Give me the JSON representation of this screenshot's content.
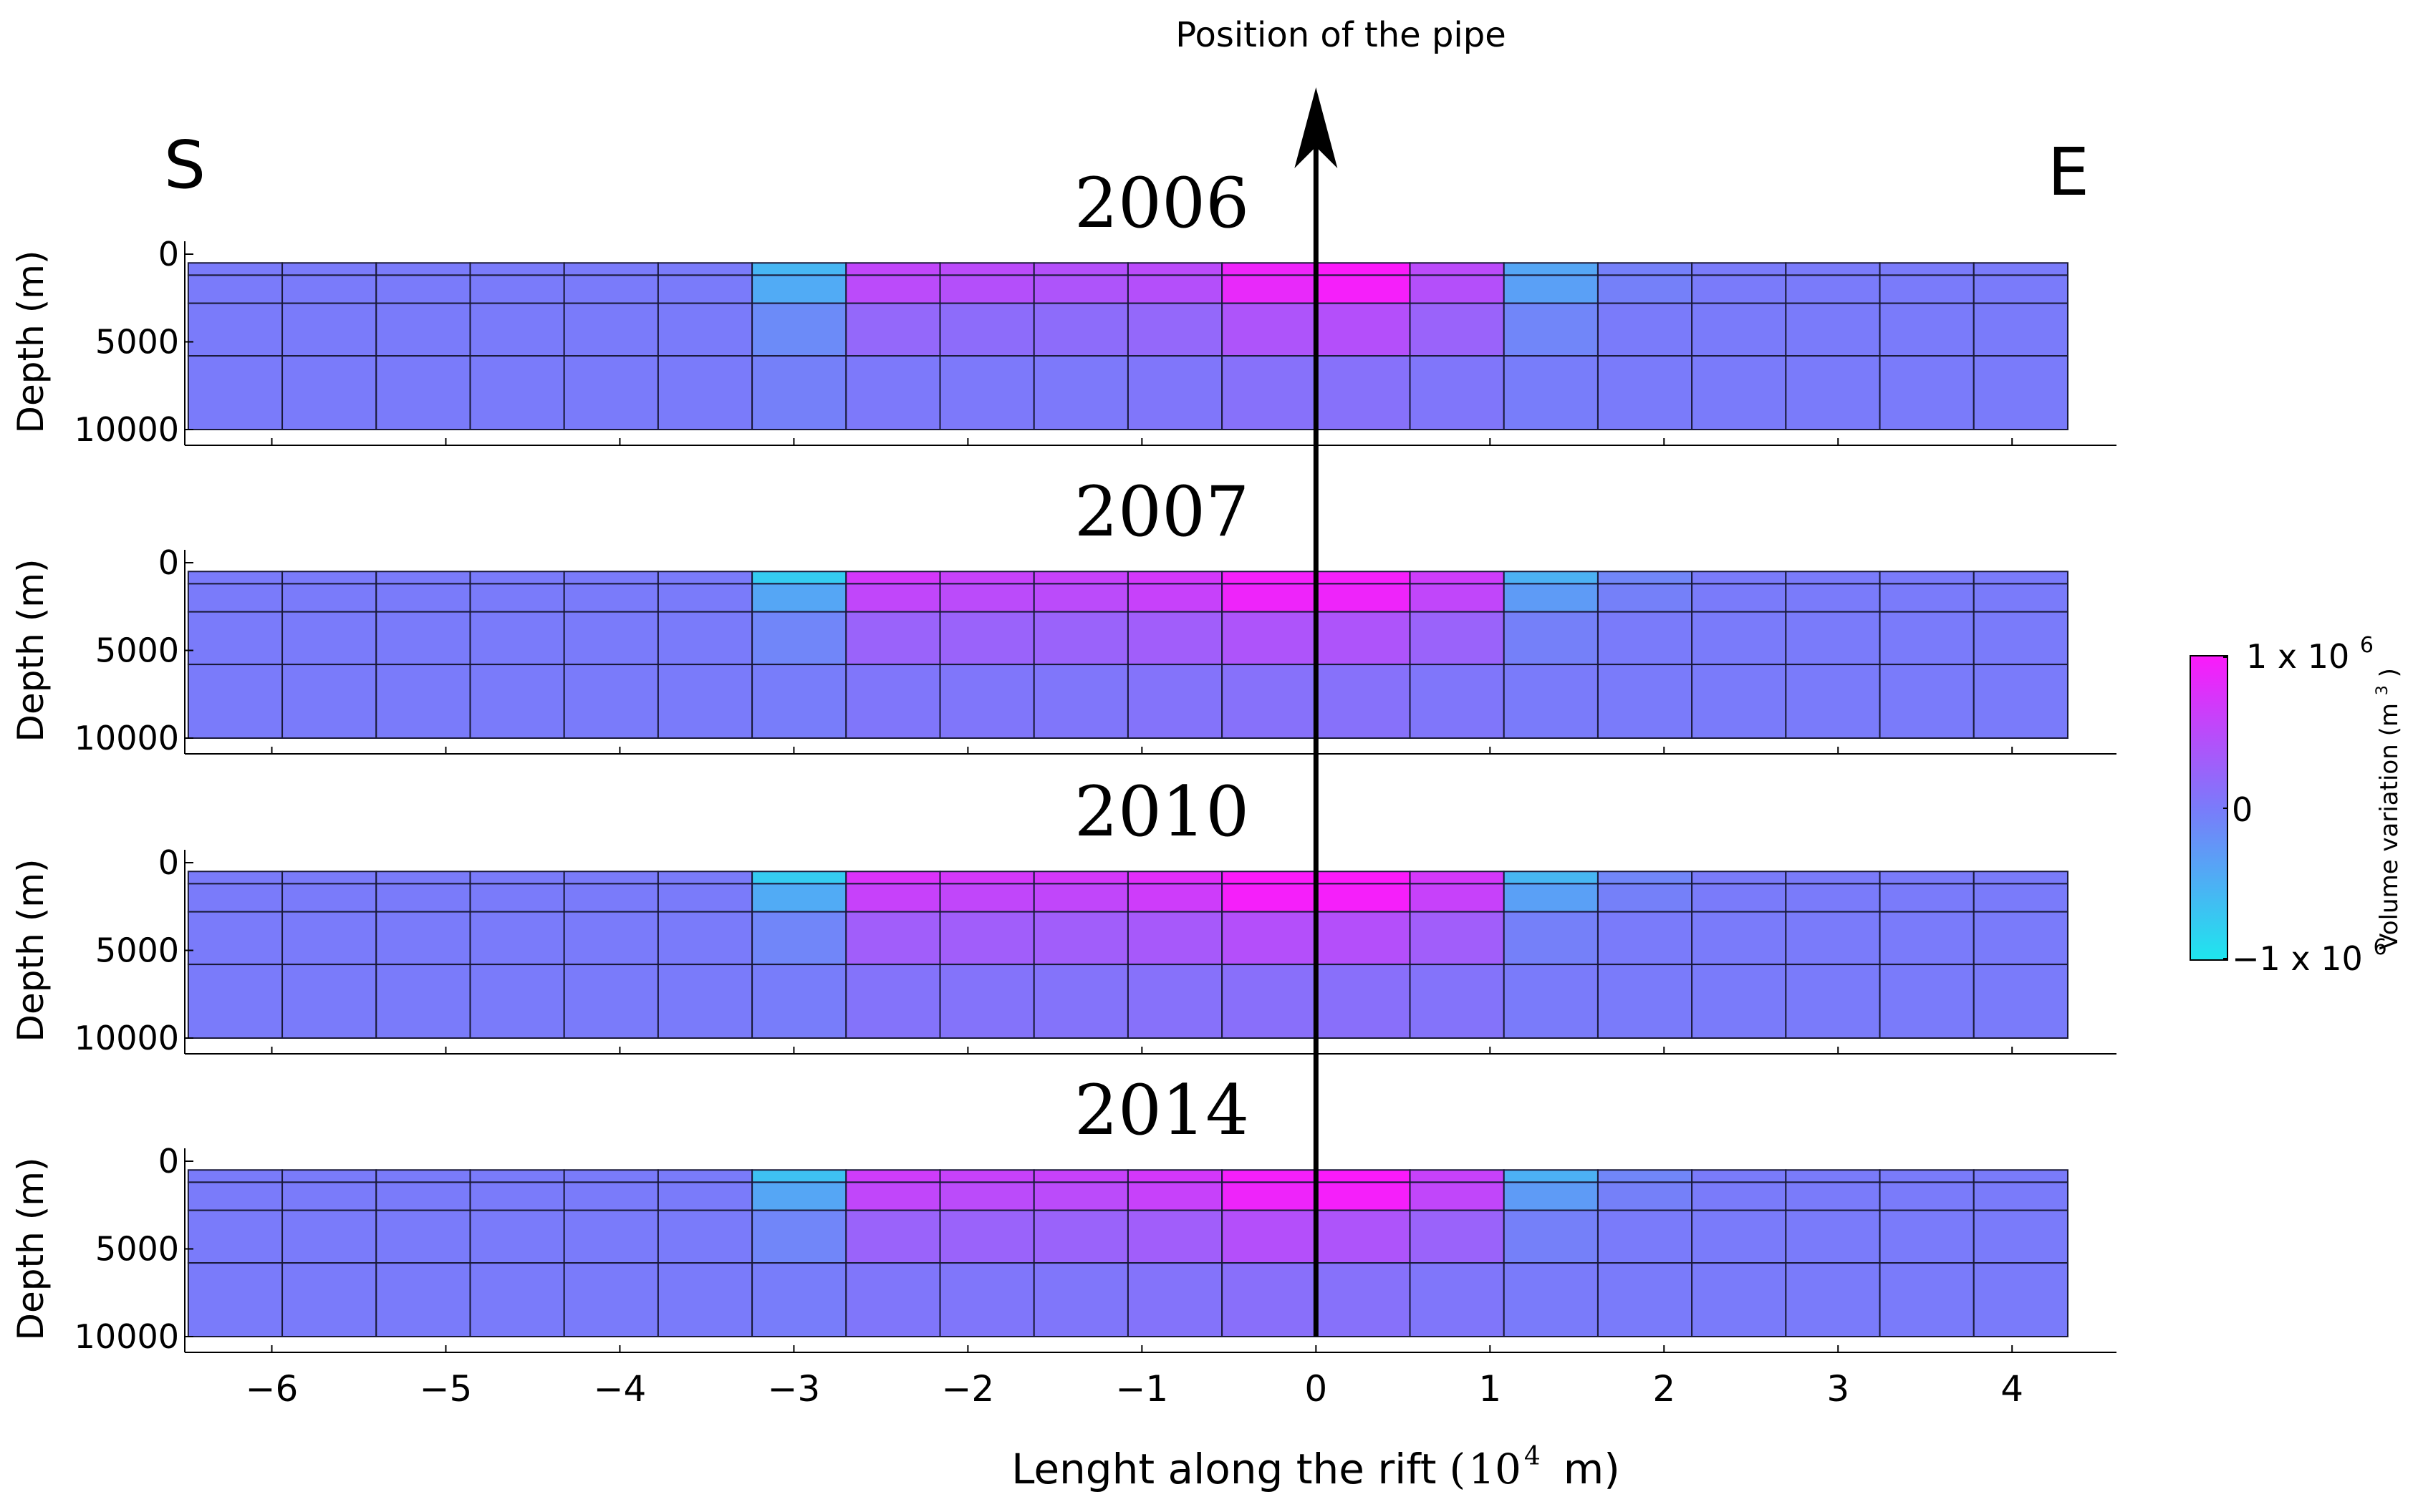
{
  "header": {
    "pipe_label": "Position of the pipe",
    "south_label": "S",
    "east_label": "E"
  },
  "colorbar": {
    "label_max": "1 x 10",
    "label_max_exp": "6",
    "label_zero": "0",
    "label_min": "−1 x 10",
    "label_min_exp": "6",
    "title": "Volume variation (m",
    "title_exp": "3",
    "title_close": ")"
  },
  "chart_data": {
    "type": "heatmap",
    "xlabel_main": "Lenght along the rift",
    "xlabel_unit_open": "(",
    "xlabel_unit_base": "10",
    "xlabel_unit_exp": "4",
    "xlabel_unit_rest": "m)",
    "ylabel": "Depth (m)",
    "xlim": [
      -6.5,
      4.6
    ],
    "ylim": [
      0,
      10000
    ],
    "x_ticks": [
      -6,
      -5,
      -4,
      -3,
      -2,
      -1,
      0,
      1,
      2,
      3,
      4
    ],
    "x_tick_labels": [
      "−6",
      "−5",
      "−4",
      "−3",
      "−2",
      "−1",
      "0",
      "1",
      "2",
      "3",
      "4"
    ],
    "y_ticks": [
      0,
      5000,
      10000
    ],
    "y_tick_labels": [
      "0",
      "5000",
      "10000"
    ],
    "cell_x_edges": [
      -6.48,
      -5.94,
      -5.4,
      -4.86,
      -4.32,
      -3.78,
      -3.24,
      -2.7,
      -2.16,
      -1.62,
      -1.08,
      -0.54,
      0.0,
      0.54,
      1.08,
      1.62,
      2.16,
      2.7,
      3.24,
      3.78,
      4.32
    ],
    "cell_depth_edges": [
      500,
      1200,
      2800,
      5800,
      10000
    ],
    "value_range": [
      -1000000,
      1000000
    ],
    "colormap": {
      "min": "#1ee6ee",
      "mid": "#7a7bfa",
      "max": "#fb1afa"
    },
    "pipe_x": 0,
    "panels": [
      {
        "year": "2006",
        "values": [
          [
            0.0,
            0.0,
            0.0,
            0.0,
            0.0,
            0.0,
            -0.55,
            0.55,
            0.5,
            0.45,
            0.5,
            0.9,
            1.0,
            0.5,
            -0.4,
            -0.05,
            0.0,
            0.0,
            0.0,
            0.0
          ],
          [
            0.0,
            0.0,
            0.0,
            0.0,
            0.0,
            0.0,
            -0.45,
            0.5,
            0.45,
            0.4,
            0.45,
            0.85,
            0.95,
            0.45,
            -0.35,
            -0.05,
            0.0,
            0.0,
            0.0,
            0.0
          ],
          [
            0.0,
            0.0,
            0.0,
            0.0,
            0.0,
            0.0,
            -0.15,
            0.2,
            0.15,
            0.15,
            0.2,
            0.4,
            0.45,
            0.25,
            -0.1,
            0.0,
            0.0,
            0.0,
            0.0,
            0.0
          ],
          [
            0.0,
            0.0,
            0.0,
            0.0,
            0.0,
            0.0,
            -0.05,
            0.02,
            0.02,
            0.02,
            0.05,
            0.1,
            0.1,
            0.05,
            -0.02,
            0.0,
            0.0,
            0.0,
            0.0,
            0.0
          ]
        ]
      },
      {
        "year": "2007",
        "values": [
          [
            0.0,
            0.0,
            0.0,
            0.0,
            0.0,
            0.0,
            -0.75,
            0.7,
            0.6,
            0.6,
            0.7,
            0.95,
            0.95,
            0.65,
            -0.5,
            -0.1,
            0.0,
            0.0,
            0.0,
            0.0
          ],
          [
            0.0,
            0.0,
            0.0,
            0.0,
            0.0,
            0.0,
            -0.4,
            0.55,
            0.5,
            0.5,
            0.6,
            0.9,
            0.9,
            0.55,
            -0.3,
            -0.05,
            0.0,
            0.0,
            0.0,
            0.0
          ],
          [
            0.0,
            0.0,
            0.0,
            0.0,
            0.0,
            0.0,
            -0.1,
            0.25,
            0.25,
            0.25,
            0.3,
            0.4,
            0.4,
            0.25,
            -0.05,
            0.0,
            0.0,
            0.0,
            0.0,
            0.0
          ],
          [
            0.0,
            0.0,
            0.0,
            0.0,
            0.0,
            0.0,
            -0.02,
            0.05,
            0.05,
            0.05,
            0.08,
            0.1,
            0.1,
            0.05,
            0.0,
            0.0,
            0.0,
            0.0,
            0.0,
            0.0
          ]
        ]
      },
      {
        "year": "2010",
        "values": [
          [
            0.0,
            0.0,
            0.0,
            0.0,
            0.0,
            0.0,
            -0.75,
            0.75,
            0.7,
            0.7,
            0.8,
            1.0,
            1.0,
            0.7,
            -0.55,
            -0.1,
            0.0,
            0.0,
            0.0,
            0.0
          ],
          [
            0.0,
            0.0,
            0.0,
            0.0,
            0.0,
            0.0,
            -0.45,
            0.6,
            0.55,
            0.55,
            0.65,
            0.95,
            0.95,
            0.6,
            -0.35,
            -0.05,
            0.0,
            0.0,
            0.0,
            0.0
          ],
          [
            0.0,
            0.0,
            0.0,
            0.0,
            0.0,
            0.0,
            -0.1,
            0.3,
            0.3,
            0.3,
            0.35,
            0.45,
            0.45,
            0.3,
            -0.05,
            0.0,
            0.0,
            0.0,
            0.0,
            0.0
          ],
          [
            0.0,
            0.0,
            0.0,
            0.0,
            0.0,
            0.0,
            -0.02,
            0.08,
            0.08,
            0.08,
            0.1,
            0.12,
            0.12,
            0.08,
            0.0,
            0.0,
            0.0,
            0.0,
            0.0,
            0.0
          ]
        ]
      },
      {
        "year": "2014",
        "values": [
          [
            0.0,
            0.0,
            0.0,
            0.0,
            0.0,
            0.0,
            -0.65,
            0.65,
            0.6,
            0.6,
            0.7,
            0.95,
            1.0,
            0.6,
            -0.5,
            -0.1,
            0.0,
            0.0,
            0.0,
            0.0
          ],
          [
            0.0,
            0.0,
            0.0,
            0.0,
            0.0,
            0.0,
            -0.4,
            0.55,
            0.5,
            0.5,
            0.6,
            0.9,
            0.95,
            0.55,
            -0.3,
            -0.05,
            0.0,
            0.0,
            0.0,
            0.0
          ],
          [
            0.0,
            0.0,
            0.0,
            0.0,
            0.0,
            0.0,
            -0.1,
            0.25,
            0.25,
            0.25,
            0.3,
            0.45,
            0.4,
            0.25,
            -0.05,
            0.0,
            0.0,
            0.0,
            0.0,
            0.0
          ],
          [
            0.0,
            0.0,
            0.0,
            0.0,
            0.0,
            0.0,
            -0.02,
            0.05,
            0.05,
            0.05,
            0.08,
            0.12,
            0.1,
            0.05,
            0.0,
            0.0,
            0.0,
            0.0,
            0.0,
            0.0
          ]
        ]
      }
    ]
  }
}
